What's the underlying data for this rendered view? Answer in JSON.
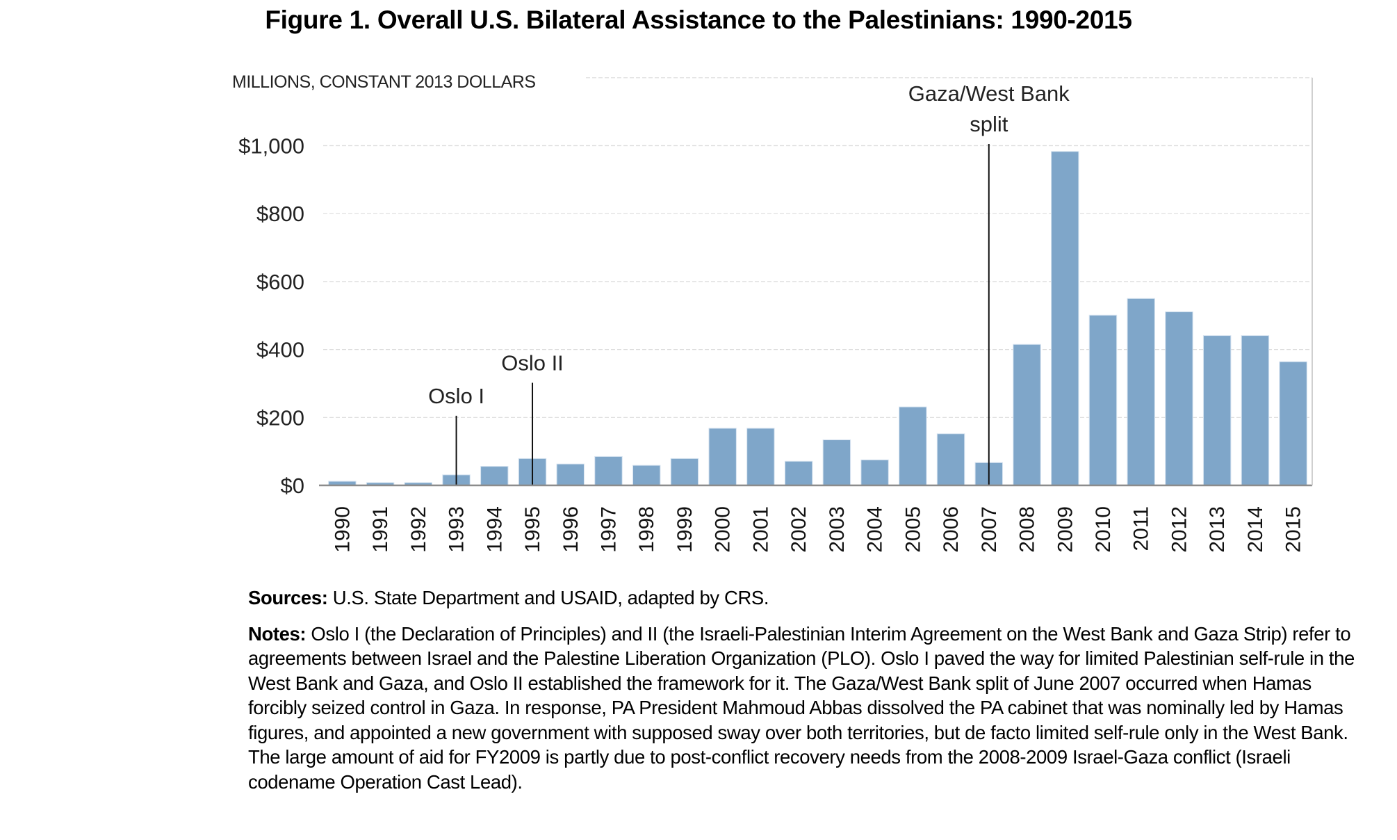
{
  "figure": {
    "title": "Figure 1. Overall U.S. Bilateral Assistance to the Palestinians: 1990-2015",
    "sources_label": "Sources:",
    "sources_text": "U.S. State Department and USAID, adapted by CRS.",
    "notes_label": "Notes:",
    "notes_text": "Oslo I (the Declaration of Principles) and II (the Israeli-Palestinian Interim Agreement on the West Bank and Gaza Strip) refer to agreements between Israel and the Palestine Liberation Organization (PLO). Oslo I paved the way for limited Palestinian self-rule in the West Bank and Gaza, and Oslo II established the framework for it. The Gaza/West Bank split of June 2007 occurred when Hamas forcibly seized control in Gaza. In response, PA President Mahmoud Abbas dissolved the PA cabinet that was nominally led by Hamas figures, and appointed a new government with supposed sway over both territories, but de facto limited self-rule only in the West Bank. The large amount of aid for FY2009 is partly due to post-conflict recovery needs from the 2008-2009 Israel-Gaza conflict (Israeli codename Operation Cast Lead)."
  },
  "chart_data": {
    "type": "bar",
    "title": "Figure 1. Overall U.S. Bilateral Assistance to the Palestinians: 1990-2015",
    "xlabel": "",
    "ylabel": "MILLIONS, CONSTANT 2013  DOLLARS",
    "categories": [
      "1990",
      "1991",
      "1992",
      "1993",
      "1994",
      "1995",
      "1996",
      "1997",
      "1998",
      "1999",
      "2000",
      "2001",
      "2002",
      "2003",
      "2004",
      "2005",
      "2006",
      "2007",
      "2008",
      "2009",
      "2010",
      "2011",
      "2012",
      "2013",
      "2014",
      "2015"
    ],
    "values": [
      12,
      8,
      8,
      31,
      56,
      79,
      63,
      85,
      59,
      79,
      168,
      168,
      71,
      134,
      75,
      231,
      152,
      67,
      415,
      983,
      501,
      550,
      511,
      441,
      441,
      364
    ],
    "ylim": [
      0,
      1200
    ],
    "yticks": [
      0,
      200,
      400,
      600,
      800,
      1000
    ],
    "ytick_labels": [
      "$0",
      "$200",
      "$400",
      "$600",
      "$800",
      "$1,000"
    ],
    "grid": true,
    "legend": "none",
    "bar_color": "#7fa6c9",
    "annotations": [
      {
        "label_lines": [
          "Oslo I"
        ],
        "category": "1993",
        "line_top_value": 205
      },
      {
        "label_lines": [
          "Oslo II"
        ],
        "category": "1995",
        "line_top_value": 302
      },
      {
        "label_lines": [
          "Gaza/West Bank",
          "split"
        ],
        "category": "2007",
        "line_top_value": 1005
      }
    ]
  }
}
